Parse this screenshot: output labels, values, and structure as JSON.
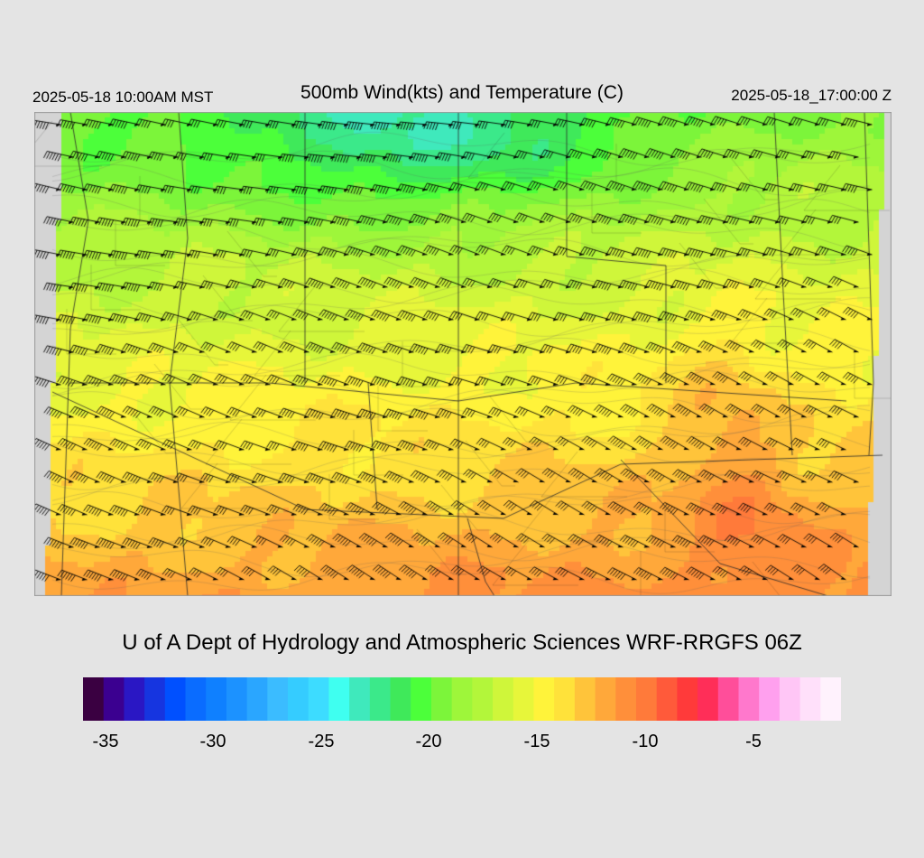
{
  "header": {
    "local_time": "2025-05-18 10:00AM MST",
    "title": "500mb Wind(kts) and Temperature (C)",
    "valid_time": "2025-05-18_17:00:00 Z"
  },
  "credit": "U of A Dept of Hydrology and Atmospheric Sciences WRF-RRGFS 06Z",
  "colorbar": {
    "colors": [
      "#3a0041",
      "#3b0090",
      "#2a17c4",
      "#1635e0",
      "#0050ff",
      "#0a6cff",
      "#0f80ff",
      "#1c92ff",
      "#2aa6ff",
      "#3bbcff",
      "#35ccff",
      "#3ddcff",
      "#3ffff0",
      "#3fe9bc",
      "#3be98a",
      "#3fe95a",
      "#4cff3a",
      "#7cf53a",
      "#9ef63a",
      "#b3f63a",
      "#cff63a",
      "#e7f63a",
      "#fff33a",
      "#ffe23a",
      "#ffc43a",
      "#ffa83a",
      "#ff8f3a",
      "#ff7a3a",
      "#ff5a3a",
      "#ff3a3a",
      "#ff2e58",
      "#ff4e9a",
      "#ff78cc",
      "#ffa0ee",
      "#ffc6f6",
      "#ffe0fa",
      "#fff2fd"
    ],
    "tick_labels": [
      "-35",
      "-30",
      "-25",
      "-20",
      "-15",
      "-10",
      "-5"
    ]
  },
  "map": {
    "field": "500mb temperature (C) with wind barbs (kts)"
  }
}
